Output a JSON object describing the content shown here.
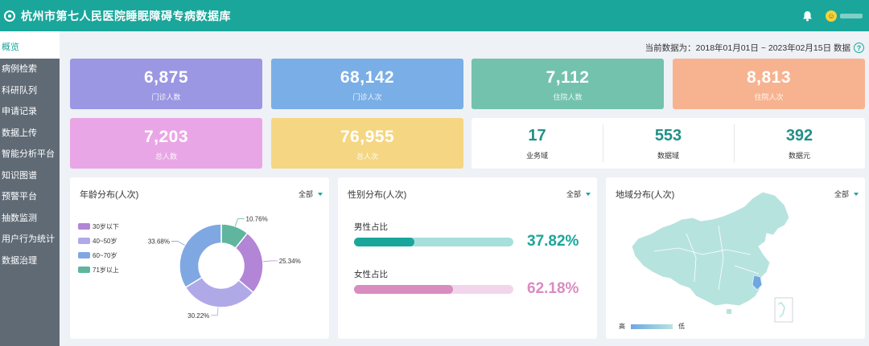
{
  "header": {
    "title": "杭州市第七人民医院睡眠障碍专病数据库",
    "bell_icon": "bell-icon",
    "avatar_icon": "smiley-avatar-icon"
  },
  "sidebar": {
    "items": [
      {
        "label": "概览",
        "active": true
      },
      {
        "label": "病例检索"
      },
      {
        "label": "科研队列"
      },
      {
        "label": "申请记录"
      },
      {
        "label": "数据上传"
      },
      {
        "label": "智能分析平台"
      },
      {
        "label": "知识图谱"
      },
      {
        "label": "预警平台"
      },
      {
        "label": "抽数监测"
      },
      {
        "label": "用户行为统计"
      },
      {
        "label": "数据治理"
      }
    ]
  },
  "date_range": {
    "text": "当前数据为：2018年01月01日 ~ 2023年02月15日 数据",
    "help_icon": "question-mark-icon"
  },
  "stats": [
    {
      "value": "6,875",
      "label": "门诊人数",
      "color": "#9b97e3"
    },
    {
      "value": "68,142",
      "label": "门诊人次",
      "color": "#7aaee6"
    },
    {
      "value": "7,112",
      "label": "住院人数",
      "color": "#73c2ad"
    },
    {
      "value": "8,813",
      "label": "住院人次",
      "color": "#f7b390"
    },
    {
      "value": "7,203",
      "label": "总人数",
      "color": "#e9a6e6"
    },
    {
      "value": "76,955",
      "label": "总人次",
      "color": "#f5d682"
    }
  ],
  "domains": [
    {
      "value": "17",
      "label": "业务域"
    },
    {
      "value": "553",
      "label": "数据域"
    },
    {
      "value": "392",
      "label": "数据元"
    }
  ],
  "age_panel": {
    "title": "年龄分布(人次)",
    "filter": "全部",
    "chart_data": {
      "type": "pie",
      "categories": [
        "30岁以下",
        "40~50岁",
        "60~70岁",
        "71岁以上"
      ],
      "values": [
        25.34,
        30.22,
        33.68,
        10.76
      ],
      "labels": [
        "25.34%",
        "30.22%",
        "33.68%",
        "10.76%"
      ],
      "colors": [
        "#b285d6",
        "#b0a9e8",
        "#7fa8e3",
        "#5fb59e"
      ],
      "legend": "left"
    }
  },
  "gender_panel": {
    "title": "性别分布(人次)",
    "filter": "全部",
    "male": {
      "label": "男性占比",
      "value": 37.82,
      "text": "37.82%",
      "color": "#1aa69b",
      "track": "#a7dfdb"
    },
    "female": {
      "label": "女性占比",
      "value": 62.18,
      "text": "62.18%",
      "color": "#d98cc0",
      "track": "#f2d5ea"
    }
  },
  "map_panel": {
    "title": "地域分布(人次)",
    "filter": "全部",
    "legend_high": "高",
    "legend_low": "低"
  }
}
